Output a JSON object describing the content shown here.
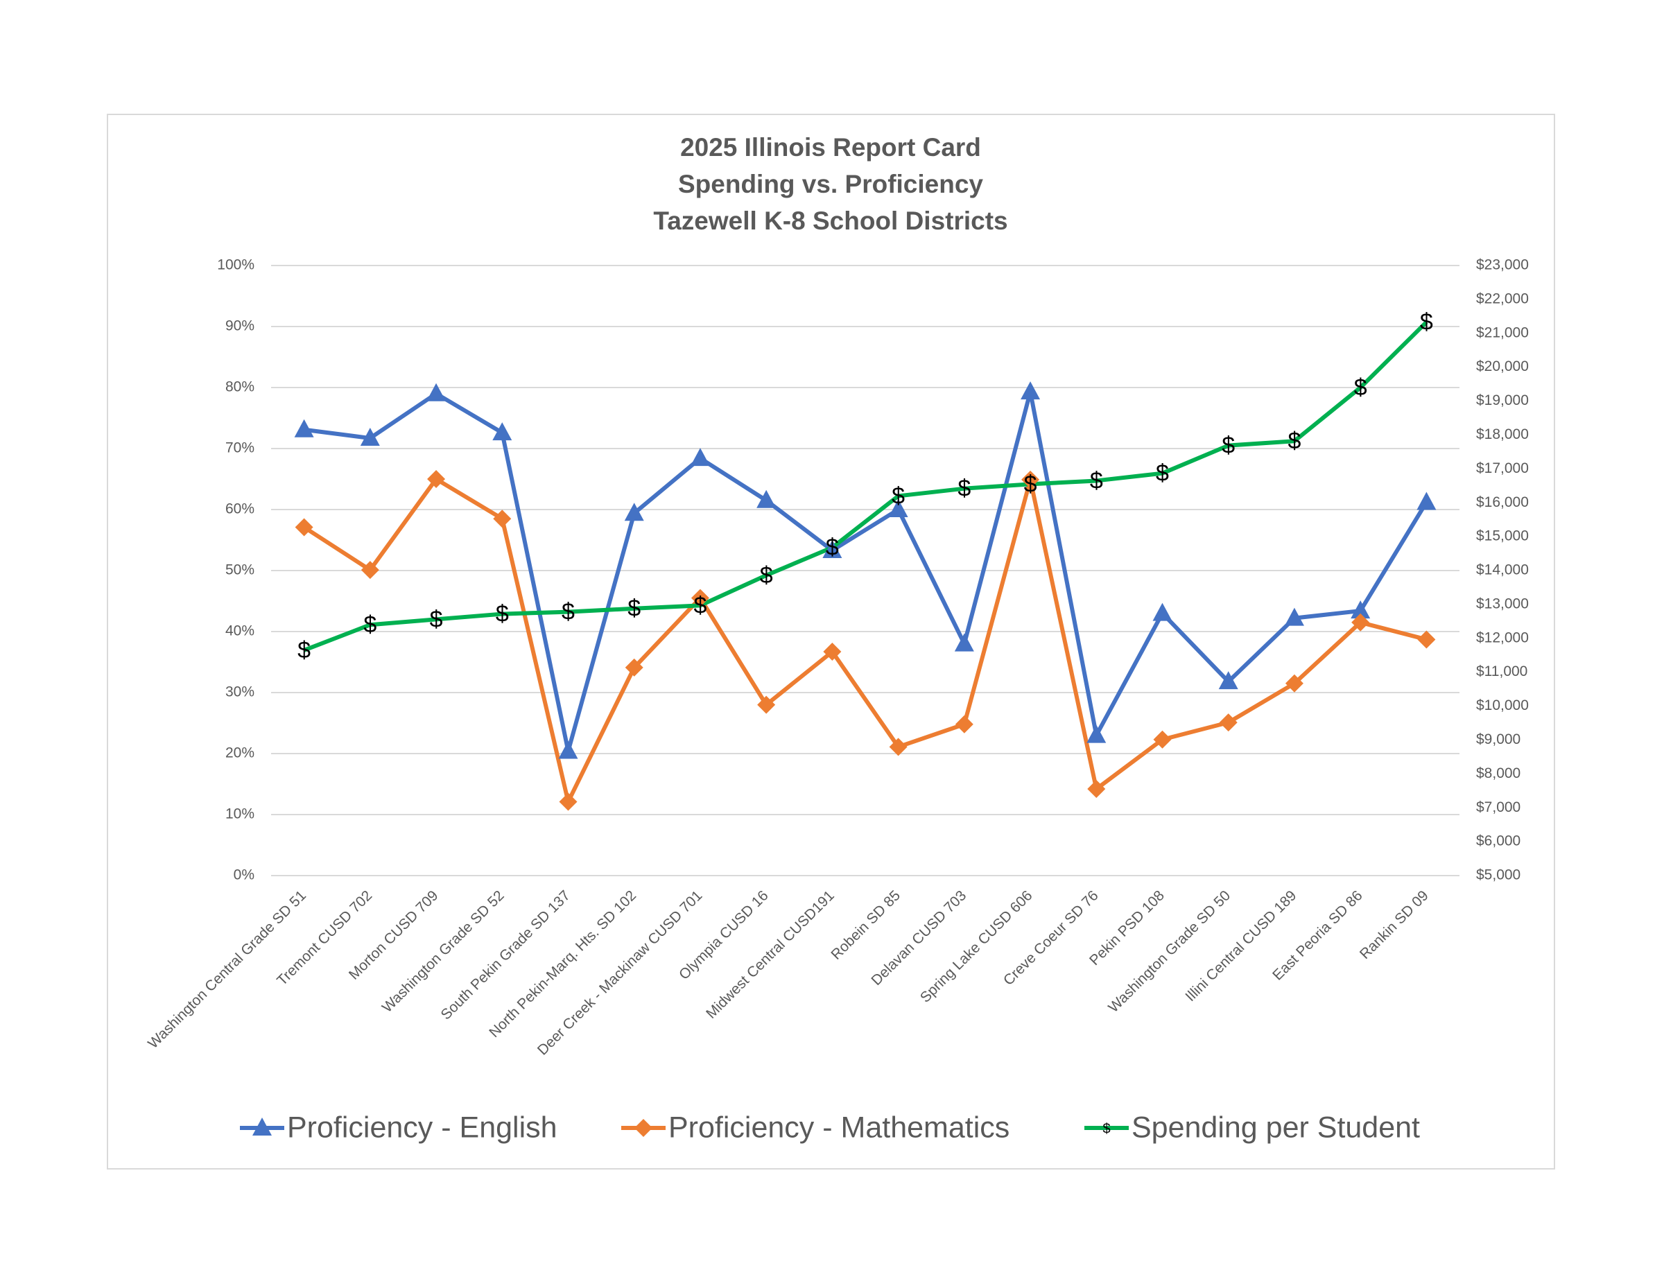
{
  "chart_data": {
    "type": "line",
    "title": [
      "2025 Illinois Report Card",
      "Spending vs. Proficiency",
      "Tazewell K-8 School Districts"
    ],
    "categories": [
      "Washington Central Grade SD 51",
      "Tremont CUSD 702",
      "Morton CUSD 709",
      "Washington Grade SD 52",
      "South Pekin Grade SD 137",
      "North Pekin-Marq. Hts. SD 102",
      "Deer Creek - Mackinaw CUSD 701",
      "Olympia CUSD 16",
      "Midwest Central CUSD191",
      "Robein SD 85",
      "Delavan CUSD 703",
      "Spring Lake CUSD 606",
      "Creve Coeur SD 76",
      "Pekin PSD 108",
      "Washington Grade SD 50",
      "Illini Central CUSD 189",
      "East Peoria SD 86",
      "Rankin SD 09"
    ],
    "series": [
      {
        "name": "Proficiency - English",
        "color": "#4472c4",
        "marker": "triangle",
        "axis": "y",
        "values": [
          73.1,
          71.7,
          79,
          72.6,
          20.4,
          59.4,
          68.4,
          61.5,
          53.3,
          60,
          38,
          79.3,
          23,
          43,
          31.8,
          42.2,
          43.4,
          61.2
        ]
      },
      {
        "name": "Proficiency - Mathematics",
        "color": "#ed7d31",
        "marker": "diamond",
        "axis": "y",
        "values": [
          57.1,
          50.1,
          65,
          58.5,
          12.1,
          34.1,
          45.5,
          28,
          36.7,
          21.1,
          24.8,
          64.9,
          14.2,
          22.3,
          25.1,
          31.5,
          41.5,
          38.7
        ]
      },
      {
        "name": "Spending per Student",
        "color": "#00b050",
        "marker": "$",
        "axis": "y2",
        "values": [
          11650,
          12400,
          12560,
          12720,
          12780,
          12880,
          12970,
          13860,
          14680,
          16200,
          16420,
          16550,
          16650,
          16870,
          17690,
          17820,
          19400,
          21330
        ]
      }
    ],
    "ylim": [
      0,
      100
    ],
    "yticks": [
      {
        "value": 0,
        "label": "0%"
      },
      {
        "value": 10,
        "label": "10%"
      },
      {
        "value": 20,
        "label": "20%"
      },
      {
        "value": 30,
        "label": "30%"
      },
      {
        "value": 40,
        "label": "40%"
      },
      {
        "value": 50,
        "label": "50%"
      },
      {
        "value": 60,
        "label": "60%"
      },
      {
        "value": 70,
        "label": "70%"
      },
      {
        "value": 80,
        "label": "80%"
      },
      {
        "value": 90,
        "label": "90%"
      },
      {
        "value": 100,
        "label": "100%"
      }
    ],
    "y2lim": [
      5000,
      23000
    ],
    "y2ticks": [
      {
        "value": 5000,
        "label": "$5,000"
      },
      {
        "value": 6000,
        "label": "$6,000"
      },
      {
        "value": 7000,
        "label": "$7,000"
      },
      {
        "value": 8000,
        "label": "$8,000"
      },
      {
        "value": 9000,
        "label": "$9,000"
      },
      {
        "value": 10000,
        "label": "$10,000"
      },
      {
        "value": 11000,
        "label": "$11,000"
      },
      {
        "value": 12000,
        "label": "$12,000"
      },
      {
        "value": 13000,
        "label": "$13,000"
      },
      {
        "value": 14000,
        "label": "$14,000"
      },
      {
        "value": 15000,
        "label": "$15,000"
      },
      {
        "value": 16000,
        "label": "$16,000"
      },
      {
        "value": 17000,
        "label": "$17,000"
      },
      {
        "value": 18000,
        "label": "$18,000"
      },
      {
        "value": 19000,
        "label": "$19,000"
      },
      {
        "value": 20000,
        "label": "$20,000"
      },
      {
        "value": 21000,
        "label": "$21,000"
      },
      {
        "value": 22000,
        "label": "$22,000"
      },
      {
        "value": 23000,
        "label": "$23,000"
      }
    ],
    "grid": true,
    "legend": "bottom"
  }
}
